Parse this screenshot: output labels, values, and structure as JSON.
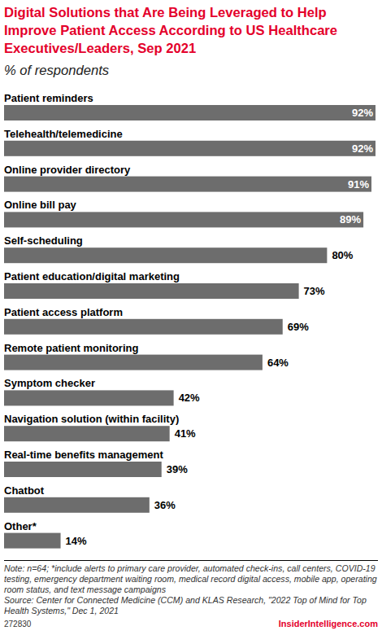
{
  "chart_data": {
    "type": "bar",
    "title": "Digital Solutions that Are Being Leveraged to Help Improve Patient Access According to US Healthcare Executives/Leaders, Sep 2021",
    "subtitle": "% of respondents",
    "categories": [
      "Patient reminders",
      "Telehealth/telemedicine",
      "Online provider directory",
      "Online bill pay",
      "Self-scheduling",
      "Patient education/digital marketing",
      "Patient access platform",
      "Remote patient monitoring",
      "Symptom checker",
      "Navigation solution (within facility)",
      "Real-time benefits management",
      "Chatbot",
      "Other*"
    ],
    "values": [
      92,
      92,
      91,
      89,
      80,
      73,
      69,
      64,
      42,
      41,
      39,
      36,
      14
    ],
    "value_labels": [
      "92%",
      "92%",
      "91%",
      "89%",
      "80%",
      "73%",
      "69%",
      "64%",
      "42%",
      "41%",
      "39%",
      "36%",
      "14%"
    ],
    "color": "#6d6d6d",
    "orientation": "horizontal",
    "data_labels": true,
    "tick_labels": false,
    "xlim": [
      0,
      92
    ],
    "note": "Note: n=64; *include alerts to primary care provider, automated check-ins, call centers, COVID-19 testing, emergency department waiting room, medical record digital access, mobile app, operating room status, and text message campaigns",
    "source": "Source: Center for Connected Medicine (CCM) and KLAS Research, \"2022 Top of Mind for Top Health Systems,\" Dec 1, 2021",
    "chart_id": "272830",
    "brand": "InsiderIntelligence.com"
  }
}
